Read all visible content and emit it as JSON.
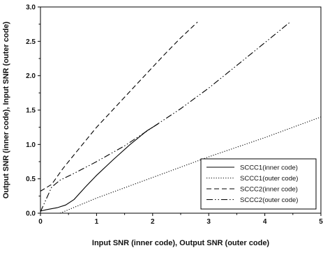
{
  "chart_data": {
    "type": "line",
    "xlabel": "Input SNR (inner code), Output SNR (outer code)",
    "ylabel": "Output SNR (inner code), Input SNR (outer code)",
    "xlim": [
      0,
      5
    ],
    "ylim": [
      0,
      3
    ],
    "x_ticks": [
      "0",
      "1",
      "2",
      "3",
      "4",
      "5"
    ],
    "y_ticks": [
      "0.0",
      "0.5",
      "1.0",
      "1.5",
      "2.0",
      "2.5",
      "3.0"
    ],
    "x_tick_values": [
      0,
      1,
      2,
      3,
      4,
      5
    ],
    "y_tick_values": [
      0,
      0.5,
      1.0,
      1.5,
      2.0,
      2.5,
      3.0
    ],
    "grid": false,
    "legend_position": "bottom-right",
    "series": [
      {
        "name": "SCCC1(inner code)",
        "line_style": "solid",
        "color": "#000000",
        "points": [
          [
            0,
            0.03
          ],
          [
            0.1,
            0.05
          ],
          [
            0.3,
            0.08
          ],
          [
            0.45,
            0.12
          ],
          [
            0.6,
            0.2
          ],
          [
            0.8,
            0.38
          ],
          [
            1.0,
            0.55
          ],
          [
            1.3,
            0.78
          ],
          [
            1.6,
            1.0
          ],
          [
            1.9,
            1.2
          ],
          [
            2.1,
            1.3
          ]
        ]
      },
      {
        "name": "SCCC1(outer code)",
        "line_style": "dotted",
        "color": "#000000",
        "points": [
          [
            0.35,
            0.0
          ],
          [
            1,
            0.22
          ],
          [
            2,
            0.52
          ],
          [
            3,
            0.82
          ],
          [
            4,
            1.1
          ],
          [
            5,
            1.4
          ]
        ]
      },
      {
        "name": "SCCC2(inner code)",
        "line_style": "dashed",
        "color": "#000000",
        "points": [
          [
            0,
            0.32
          ],
          [
            0.2,
            0.42
          ],
          [
            0.4,
            0.65
          ],
          [
            0.6,
            0.85
          ],
          [
            0.8,
            1.05
          ],
          [
            1.0,
            1.25
          ],
          [
            1.4,
            1.6
          ],
          [
            1.8,
            1.95
          ],
          [
            2.2,
            2.3
          ],
          [
            2.5,
            2.55
          ],
          [
            2.8,
            2.78
          ]
        ]
      },
      {
        "name": "SCCC2(outer code)",
        "line_style": "dashdotdot",
        "color": "#000000",
        "points": [
          [
            0,
            0.02
          ],
          [
            0.1,
            0.2
          ],
          [
            0.2,
            0.38
          ],
          [
            0.35,
            0.48
          ],
          [
            0.6,
            0.58
          ],
          [
            1.0,
            0.75
          ],
          [
            1.5,
            0.98
          ],
          [
            2.0,
            1.25
          ],
          [
            2.5,
            1.52
          ],
          [
            3.0,
            1.82
          ],
          [
            3.5,
            2.15
          ],
          [
            4.0,
            2.48
          ],
          [
            4.45,
            2.78
          ]
        ]
      }
    ]
  }
}
